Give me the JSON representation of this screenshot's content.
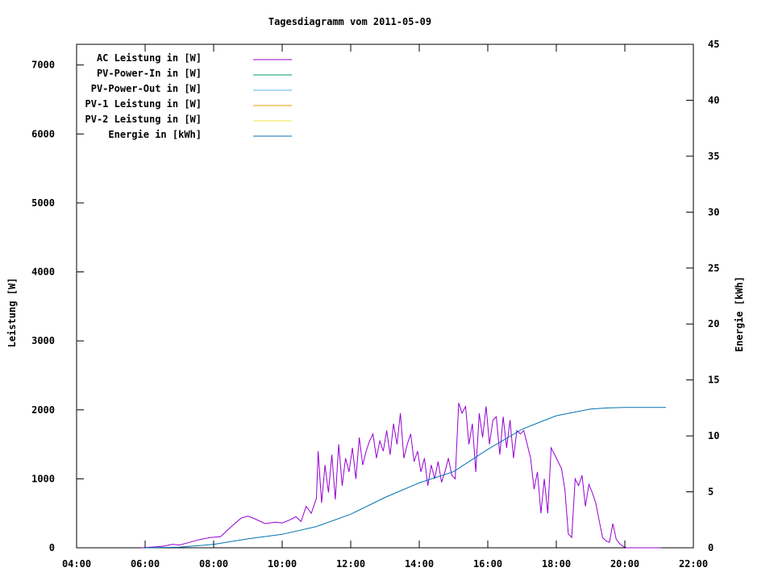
{
  "chart_data": {
    "type": "line",
    "title": "Tagesdiagramm vom 2011-05-09",
    "ylabel": "Leistung [W]",
    "y2label": "Energie [kWh]",
    "xlim": [
      4,
      22
    ],
    "ylim": [
      0,
      7300
    ],
    "y2lim": [
      0,
      45
    ],
    "x_ticks": [
      "04:00",
      "06:00",
      "08:00",
      "10:00",
      "12:00",
      "14:00",
      "16:00",
      "18:00",
      "20:00",
      "22:00"
    ],
    "y_ticks": [
      0,
      1000,
      2000,
      3000,
      4000,
      5000,
      6000,
      7000
    ],
    "y2_ticks": [
      0,
      5,
      10,
      15,
      20,
      25,
      30,
      35,
      40,
      45
    ],
    "grid": false,
    "legend_position": "top-left",
    "series": [
      {
        "name": "AC Leistung in [W]",
        "axis": "left",
        "color": "#9400d3",
        "x": [
          5.9,
          6.5,
          6.8,
          7.0,
          7.3,
          7.6,
          7.9,
          8.2,
          8.5,
          8.8,
          9.0,
          9.2,
          9.5,
          9.8,
          10.0,
          10.2,
          10.4,
          10.55,
          10.7,
          10.85,
          11.0,
          11.05,
          11.15,
          11.25,
          11.35,
          11.45,
          11.55,
          11.65,
          11.75,
          11.85,
          11.95,
          12.05,
          12.15,
          12.25,
          12.35,
          12.45,
          12.55,
          12.65,
          12.75,
          12.85,
          12.95,
          13.05,
          13.15,
          13.25,
          13.35,
          13.45,
          13.55,
          13.65,
          13.75,
          13.85,
          13.95,
          14.05,
          14.15,
          14.25,
          14.35,
          14.45,
          14.55,
          14.65,
          14.75,
          14.85,
          14.95,
          15.05,
          15.15,
          15.25,
          15.35,
          15.45,
          15.55,
          15.65,
          15.75,
          15.85,
          15.95,
          16.05,
          16.15,
          16.25,
          16.35,
          16.45,
          16.55,
          16.65,
          16.75,
          16.85,
          16.95,
          17.05,
          17.15,
          17.25,
          17.35,
          17.45,
          17.55,
          17.65,
          17.75,
          17.85,
          17.95,
          18.05,
          18.15,
          18.25,
          18.35,
          18.45,
          18.55,
          18.65,
          18.75,
          18.85,
          18.95,
          19.05,
          19.15,
          19.25,
          19.35,
          19.45,
          19.55,
          19.65,
          19.75,
          19.85,
          19.95,
          20.05,
          20.15,
          20.25,
          20.35,
          20.5,
          20.7,
          20.9,
          21.05
        ],
        "y": [
          0,
          20,
          50,
          40,
          80,
          120,
          150,
          160,
          300,
          430,
          460,
          420,
          350,
          370,
          360,
          400,
          450,
          380,
          600,
          500,
          720,
          1400,
          650,
          1200,
          800,
          1350,
          700,
          1500,
          900,
          1300,
          1100,
          1450,
          1000,
          1600,
          1200,
          1400,
          1550,
          1650,
          1300,
          1550,
          1400,
          1700,
          1350,
          1800,
          1500,
          1950,
          1300,
          1500,
          1650,
          1250,
          1400,
          1100,
          1300,
          900,
          1200,
          1000,
          1250,
          950,
          1100,
          1300,
          1050,
          1000,
          2100,
          1950,
          2050,
          1500,
          1800,
          1100,
          1950,
          1600,
          2050,
          1500,
          1850,
          1900,
          1350,
          1900,
          1450,
          1850,
          1300,
          1700,
          1650,
          1700,
          1500,
          1300,
          850,
          1100,
          500,
          1000,
          500,
          1450,
          1350,
          1250,
          1150,
          850,
          200,
          150,
          1000,
          900,
          1050,
          600,
          920,
          800,
          650,
          400,
          150,
          100,
          80,
          350,
          120,
          60,
          20,
          0,
          0,
          0,
          0,
          0,
          0,
          0,
          0
        ]
      },
      {
        "name": "PV-Power-In in [W]",
        "axis": "left",
        "color": "#009e73",
        "x": [],
        "y": []
      },
      {
        "name": "PV-Power-Out in [W]",
        "axis": "left",
        "color": "#56b4e9",
        "x": [],
        "y": []
      },
      {
        "name": "PV-1 Leistung in [W]",
        "axis": "left",
        "color": "#e69f00",
        "x": [],
        "y": []
      },
      {
        "name": "PV-2 Leistung in [W]",
        "axis": "left",
        "color": "#f0e442",
        "x": [],
        "y": []
      },
      {
        "name": "Energie in [kWh]",
        "axis": "right",
        "color": "#0072b2",
        "x": [
          6.0,
          7.0,
          8.0,
          9.0,
          10.0,
          11.0,
          12.0,
          13.0,
          14.0,
          15.0,
          16.0,
          17.0,
          17.5,
          18.0,
          18.5,
          19.0,
          19.5,
          20.0,
          20.5,
          21.0,
          21.2
        ],
        "y": [
          0,
          0.05,
          0.3,
          0.8,
          1.2,
          1.9,
          3.0,
          4.5,
          5.8,
          6.8,
          8.8,
          10.6,
          11.2,
          11.8,
          12.1,
          12.4,
          12.5,
          12.55,
          12.55,
          12.55,
          12.55
        ]
      }
    ]
  }
}
